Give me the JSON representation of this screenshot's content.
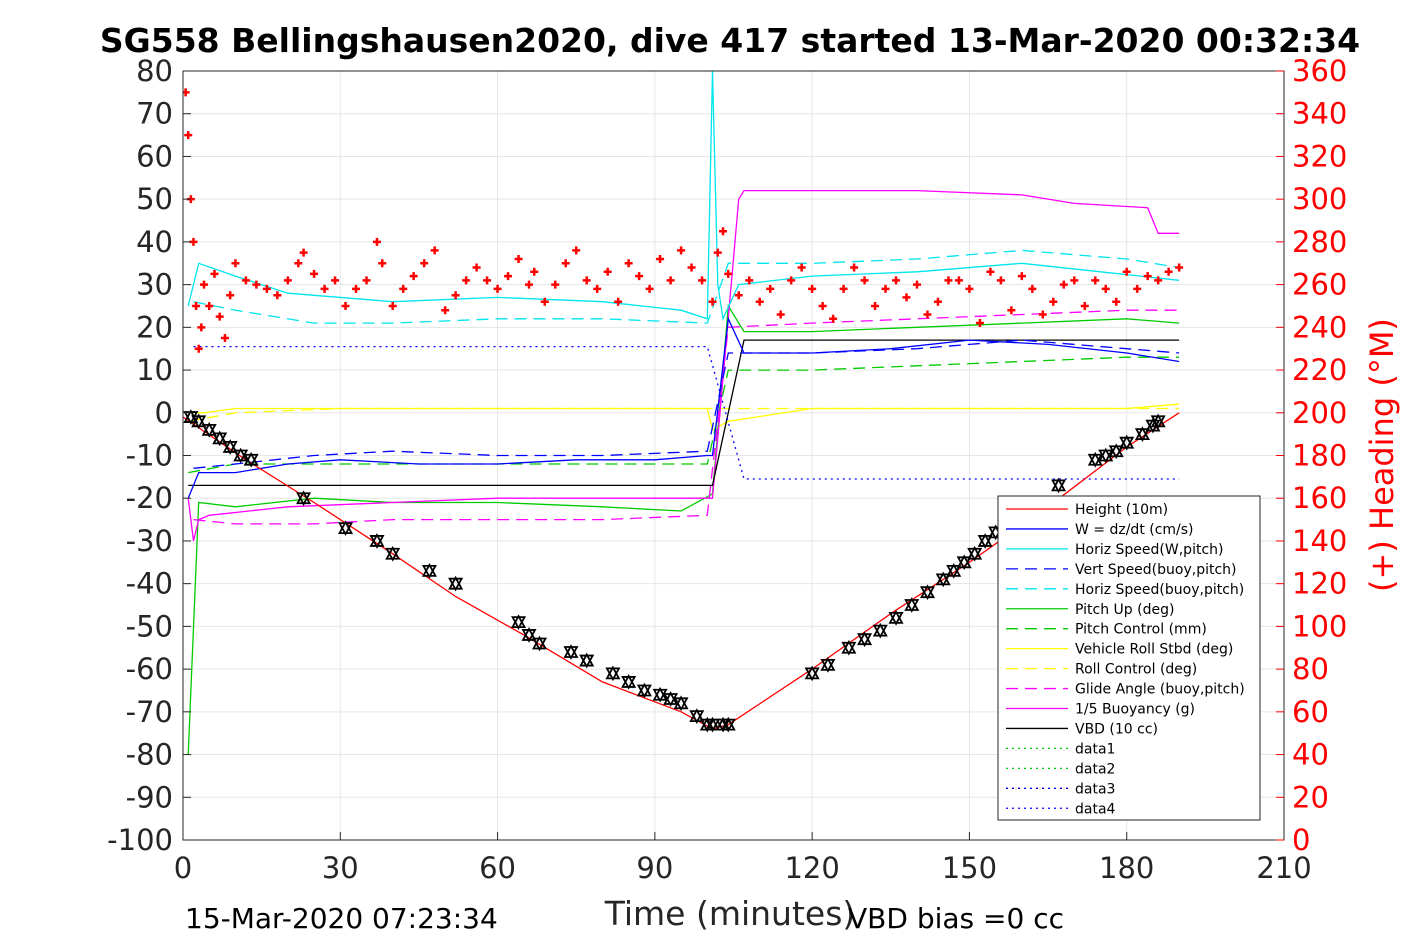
{
  "chart_data": {
    "type": "line",
    "title": "SG558 Bellingshausen2020, dive 417 started 13-Mar-2020 00:32:34",
    "xlabel": "Time (minutes)",
    "ylabel": "",
    "y2label": "(+) Heading (°M)",
    "xlim": [
      0,
      210
    ],
    "ylim": [
      -100,
      80
    ],
    "y2lim": [
      0,
      360
    ],
    "xticks": [
      "0",
      "30",
      "60",
      "90",
      "120",
      "150",
      "180",
      "210"
    ],
    "yticks": [
      "80",
      "70",
      "60",
      "50",
      "40",
      "30",
      "20",
      "10",
      "0",
      "-10",
      "-20",
      "-30",
      "-40",
      "-50",
      "-60",
      "-70",
      "-80",
      "-90",
      "-100"
    ],
    "y2ticks": [
      "360",
      "340",
      "320",
      "300",
      "280",
      "260",
      "240",
      "220",
      "200",
      "180",
      "160",
      "140",
      "120",
      "100",
      "80",
      "60",
      "40",
      "20",
      "0"
    ],
    "grid": true,
    "legend_position": "bottom-right",
    "footer_left": "15-Mar-2020 07:23:34",
    "footer_right": "VBD bias =0 cc",
    "series": [
      {
        "name": "Height (10m)",
        "color": "#ff0000",
        "style": "solid",
        "x": [
          0,
          12,
          25,
          40,
          52,
          65,
          80,
          95,
          101,
          104,
          120,
          135,
          150,
          165,
          180,
          190
        ],
        "y": [
          -1,
          -11,
          -21,
          -33,
          -43,
          -52,
          -63,
          -70,
          -74,
          -73,
          -60,
          -47,
          -35,
          -22,
          -8,
          0
        ]
      },
      {
        "name": "W = dz/dt (cm/s)",
        "color": "#0000ff",
        "style": "solid",
        "x": [
          1,
          3,
          10,
          20,
          30,
          45,
          60,
          75,
          90,
          100,
          101,
          104,
          107,
          120,
          135,
          150,
          165,
          180,
          190
        ],
        "y": [
          -20,
          -14,
          -14,
          -12,
          -11,
          -12,
          -12,
          -11,
          -11,
          -10,
          -10,
          22,
          14,
          14,
          15,
          17,
          16,
          14,
          12
        ]
      },
      {
        "name": "Horiz Speed(W,pitch)",
        "color": "#00e5ee",
        "style": "solid",
        "x": [
          1,
          3,
          10,
          20,
          40,
          60,
          80,
          95,
          100,
          101,
          102,
          103,
          106,
          120,
          140,
          160,
          175,
          190
        ],
        "y": [
          25,
          35,
          32,
          28,
          26,
          27,
          26,
          24,
          22,
          80,
          30,
          22,
          30,
          32,
          33,
          35,
          33,
          31
        ]
      },
      {
        "name": "Vert Speed(buoy,pitch)",
        "color": "#0000ff",
        "style": "dash",
        "x": [
          2,
          10,
          25,
          40,
          60,
          80,
          100,
          104,
          120,
          140,
          160,
          180,
          190
        ],
        "y": [
          -13,
          -12,
          -10,
          -9,
          -10,
          -10,
          -9,
          14,
          14,
          15,
          17,
          15,
          14
        ]
      },
      {
        "name": "Horiz Speed(buoy,pitch)",
        "color": "#00e5ee",
        "style": "dash",
        "x": [
          2,
          10,
          25,
          40,
          60,
          80,
          100,
          104,
          120,
          140,
          160,
          180,
          190
        ],
        "y": [
          26,
          24,
          21,
          21,
          22,
          22,
          21,
          35,
          35,
          36,
          38,
          36,
          34
        ]
      },
      {
        "name": "Pitch Up (deg)",
        "color": "#00cc00",
        "style": "solid",
        "x": [
          1,
          3,
          10,
          25,
          40,
          60,
          80,
          95,
          101,
          104,
          107,
          120,
          140,
          160,
          180,
          190
        ],
        "y": [
          -80,
          -21,
          -22,
          -20,
          -21,
          -21,
          -22,
          -23,
          -19,
          25,
          19,
          19,
          20,
          21,
          22,
          21
        ]
      },
      {
        "name": "Pitch Control (mm)",
        "color": "#00cc00",
        "style": "dash",
        "x": [
          1,
          10,
          25,
          40,
          60,
          80,
          100,
          104,
          120,
          140,
          160,
          180,
          190
        ],
        "y": [
          -14,
          -12,
          -12,
          -12,
          -12,
          -12,
          -12,
          10,
          10,
          11,
          12,
          13,
          13
        ]
      },
      {
        "name": "Vehicle Roll Stbd (deg)",
        "color": "#ffff00",
        "style": "solid",
        "x": [
          1,
          4,
          10,
          30,
          60,
          90,
          100,
          101,
          104,
          120,
          150,
          180,
          190
        ],
        "y": [
          0,
          0,
          1,
          1,
          1,
          1,
          1,
          -4,
          -2,
          1,
          1,
          1,
          2
        ]
      },
      {
        "name": "Roll Control (deg)",
        "color": "#ffff00",
        "style": "dash",
        "x": [
          1,
          10,
          30,
          60,
          90,
          100,
          104,
          120,
          150,
          180,
          190
        ],
        "y": [
          -2,
          0,
          1,
          1,
          1,
          1,
          1,
          1,
          1,
          1,
          1
        ]
      },
      {
        "name": "Glide Angle (buoy,pitch)",
        "color": "#ff00ff",
        "style": "dash",
        "x": [
          2,
          10,
          25,
          40,
          60,
          80,
          100,
          104,
          120,
          140,
          160,
          180,
          190
        ],
        "y": [
          -25,
          -26,
          -26,
          -25,
          -25,
          -25,
          -24,
          20,
          21,
          22,
          23,
          24,
          24
        ]
      },
      {
        "name": "1/5 Buoyancy (g)",
        "color": "#ff00ff",
        "style": "solid",
        "x": [
          1,
          2,
          3,
          5,
          20,
          40,
          60,
          80,
          100,
          101,
          106,
          107,
          120,
          140,
          160,
          170,
          184,
          186,
          190
        ],
        "y": [
          -20,
          -30,
          -25,
          -24,
          -22,
          -21,
          -20,
          -20,
          -20,
          -20,
          50,
          52,
          52,
          52,
          51,
          49,
          48,
          42,
          42
        ]
      },
      {
        "name": "VBD (10 cc)",
        "color": "#000000",
        "style": "solid",
        "x": [
          1,
          100,
          101,
          107,
          190
        ],
        "y": [
          -17,
          -17,
          -17,
          17,
          17
        ]
      },
      {
        "name": "data1",
        "color": "#00cc00",
        "style": "dot",
        "x": [],
        "y": []
      },
      {
        "name": "data2",
        "color": "#00cc00",
        "style": "dot",
        "x": [],
        "y": []
      },
      {
        "name": "data3",
        "color": "#0000ff",
        "style": "dot",
        "x": [
          2,
          100,
          107,
          190
        ],
        "y": [
          15.5,
          15.5,
          -15.5,
          -15.5
        ]
      },
      {
        "name": "data4",
        "color": "#0000ff",
        "style": "dot",
        "x": [],
        "y": []
      }
    ],
    "gps_markers": {
      "name": "GPS fixes",
      "x": [
        1.5,
        3,
        5,
        7,
        9,
        11,
        13,
        23,
        31,
        37,
        40,
        47,
        52,
        64,
        66,
        68,
        74,
        77,
        82,
        85,
        88,
        91,
        93,
        95,
        98,
        100,
        101,
        103,
        104,
        120,
        123,
        127,
        130,
        133,
        136,
        139,
        142,
        145,
        147,
        149,
        151,
        153,
        155,
        167,
        174,
        176,
        178,
        180,
        183,
        185,
        186
      ],
      "y": [
        -1,
        -2,
        -4,
        -6,
        -8,
        -10,
        -11,
        -20,
        -27,
        -30,
        -33,
        -37,
        -40,
        -49,
        -52,
        -54,
        -56,
        -58,
        -61,
        -63,
        -65,
        -66,
        -67,
        -68,
        -71,
        -73,
        -73,
        -73,
        -73,
        -61,
        -59,
        -55,
        -53,
        -51,
        -48,
        -45,
        -42,
        -39,
        -37,
        -35,
        -33,
        -30,
        -28,
        -17,
        -11,
        -10,
        -9,
        -7,
        -5,
        -3,
        -2
      ]
    },
    "heading": {
      "name": "(+) Heading",
      "color": "#ff0000",
      "x": [
        0.5,
        1,
        1.5,
        2,
        2.5,
        3,
        3.5,
        4,
        5,
        6,
        7,
        8,
        9,
        10,
        12,
        14,
        16,
        18,
        20,
        22,
        23,
        25,
        27,
        29,
        31,
        33,
        35,
        37,
        38,
        40,
        42,
        44,
        46,
        48,
        50,
        52,
        54,
        56,
        58,
        60,
        62,
        64,
        66,
        67,
        69,
        71,
        73,
        75,
        77,
        79,
        81,
        83,
        85,
        87,
        89,
        91,
        93,
        95,
        97,
        99,
        101,
        102,
        103,
        104,
        106,
        108,
        110,
        112,
        114,
        116,
        118,
        120,
        122,
        124,
        126,
        128,
        130,
        132,
        134,
        136,
        138,
        140,
        142,
        144,
        146,
        148,
        150,
        152,
        154,
        156,
        158,
        160,
        162,
        164,
        166,
        168,
        170,
        172,
        174,
        176,
        178,
        180,
        182,
        184,
        186,
        188,
        190
      ],
      "y": [
        350,
        330,
        300,
        280,
        250,
        230,
        240,
        260,
        250,
        265,
        245,
        235,
        255,
        270,
        262,
        260,
        258,
        255,
        262,
        270,
        275,
        265,
        258,
        262,
        250,
        258,
        262,
        280,
        270,
        250,
        258,
        264,
        270,
        276,
        248,
        255,
        262,
        268,
        262,
        258,
        264,
        272,
        260,
        266,
        252,
        260,
        270,
        276,
        262,
        258,
        266,
        252,
        270,
        264,
        258,
        272,
        262,
        276,
        268,
        262,
        252,
        275,
        285,
        265,
        255,
        262,
        252,
        258,
        246,
        262,
        268,
        258,
        250,
        244,
        258,
        268,
        262,
        250,
        258,
        262,
        254,
        260,
        246,
        252,
        262,
        262,
        258,
        242,
        266,
        262,
        248,
        264,
        258,
        246,
        252,
        260,
        262,
        250,
        262,
        258,
        252,
        266,
        258,
        264,
        262,
        266,
        268
      ]
    }
  }
}
